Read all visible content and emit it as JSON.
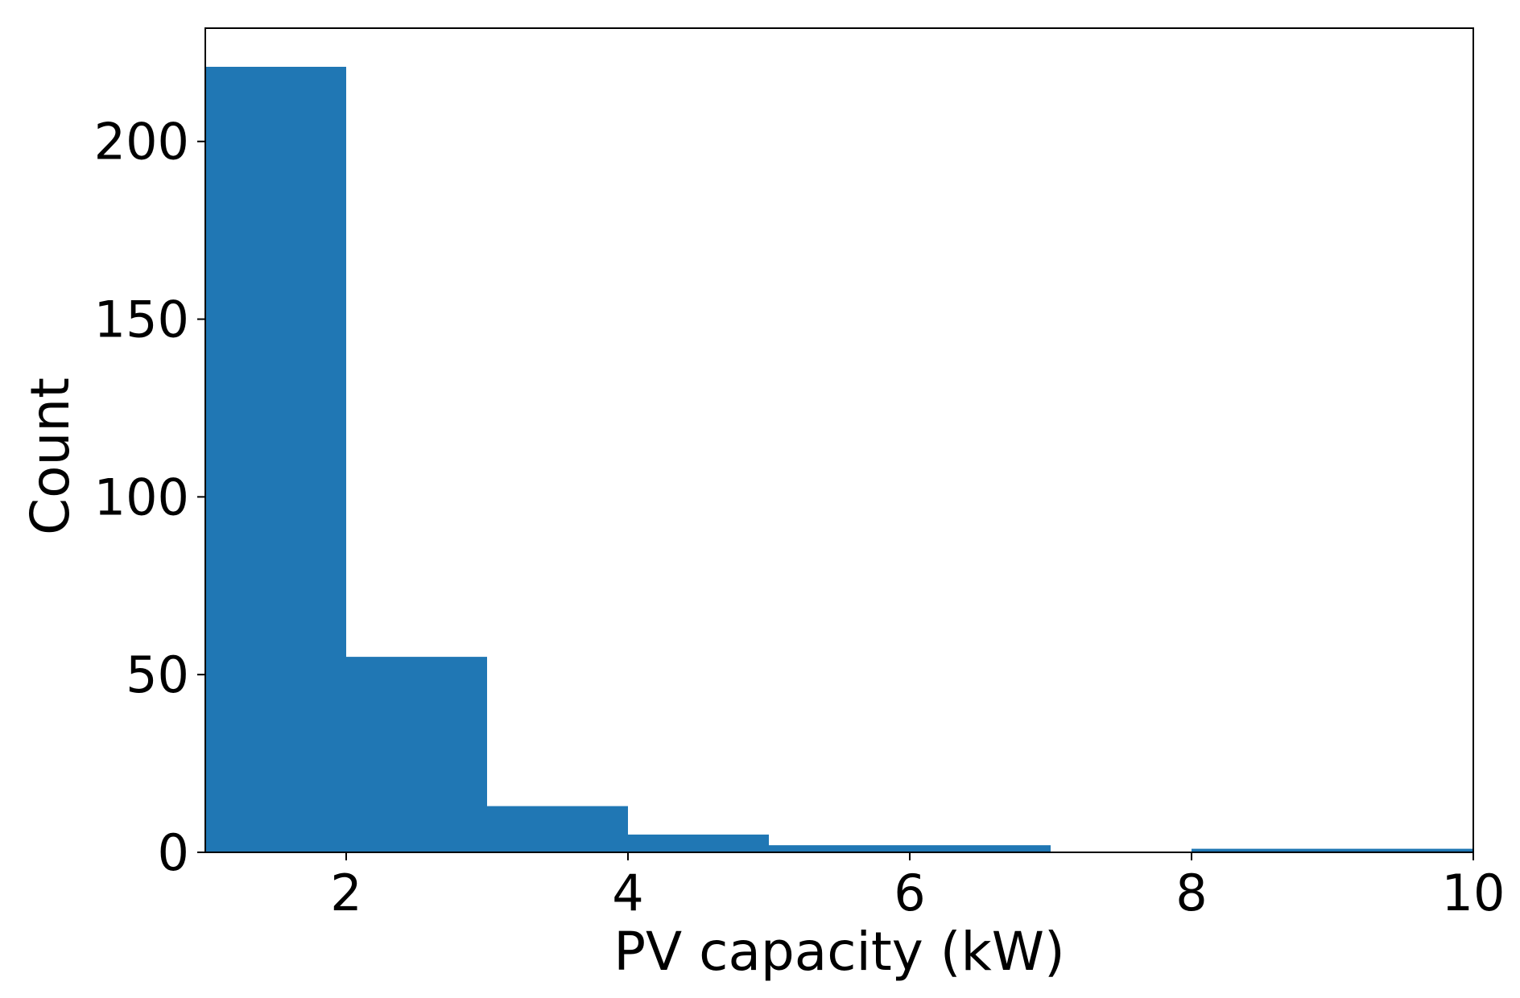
{
  "chart_data": {
    "type": "bar",
    "histogram": true,
    "title": "",
    "xlabel": "PV capacity (kW)",
    "ylabel": "Count",
    "xlim": [
      1,
      10
    ],
    "ylim": [
      0,
      221
    ],
    "xticks": [
      2,
      4,
      6,
      8,
      10
    ],
    "yticks": [
      0,
      50,
      100,
      150,
      200
    ],
    "bins": [
      {
        "x0": 1,
        "x1": 2,
        "value": 221
      },
      {
        "x0": 2,
        "x1": 3,
        "value": 55
      },
      {
        "x0": 3,
        "x1": 4,
        "value": 13
      },
      {
        "x0": 4,
        "x1": 5,
        "value": 5
      },
      {
        "x0": 5,
        "x1": 6,
        "value": 2
      },
      {
        "x0": 6,
        "x1": 7,
        "value": 2
      },
      {
        "x0": 7,
        "x1": 8,
        "value": 0
      },
      {
        "x0": 8,
        "x1": 9,
        "value": 1
      },
      {
        "x0": 9,
        "x1": 10,
        "value": 1
      }
    ],
    "bar_color": "#2077b4",
    "grid": false,
    "legend": "none"
  }
}
